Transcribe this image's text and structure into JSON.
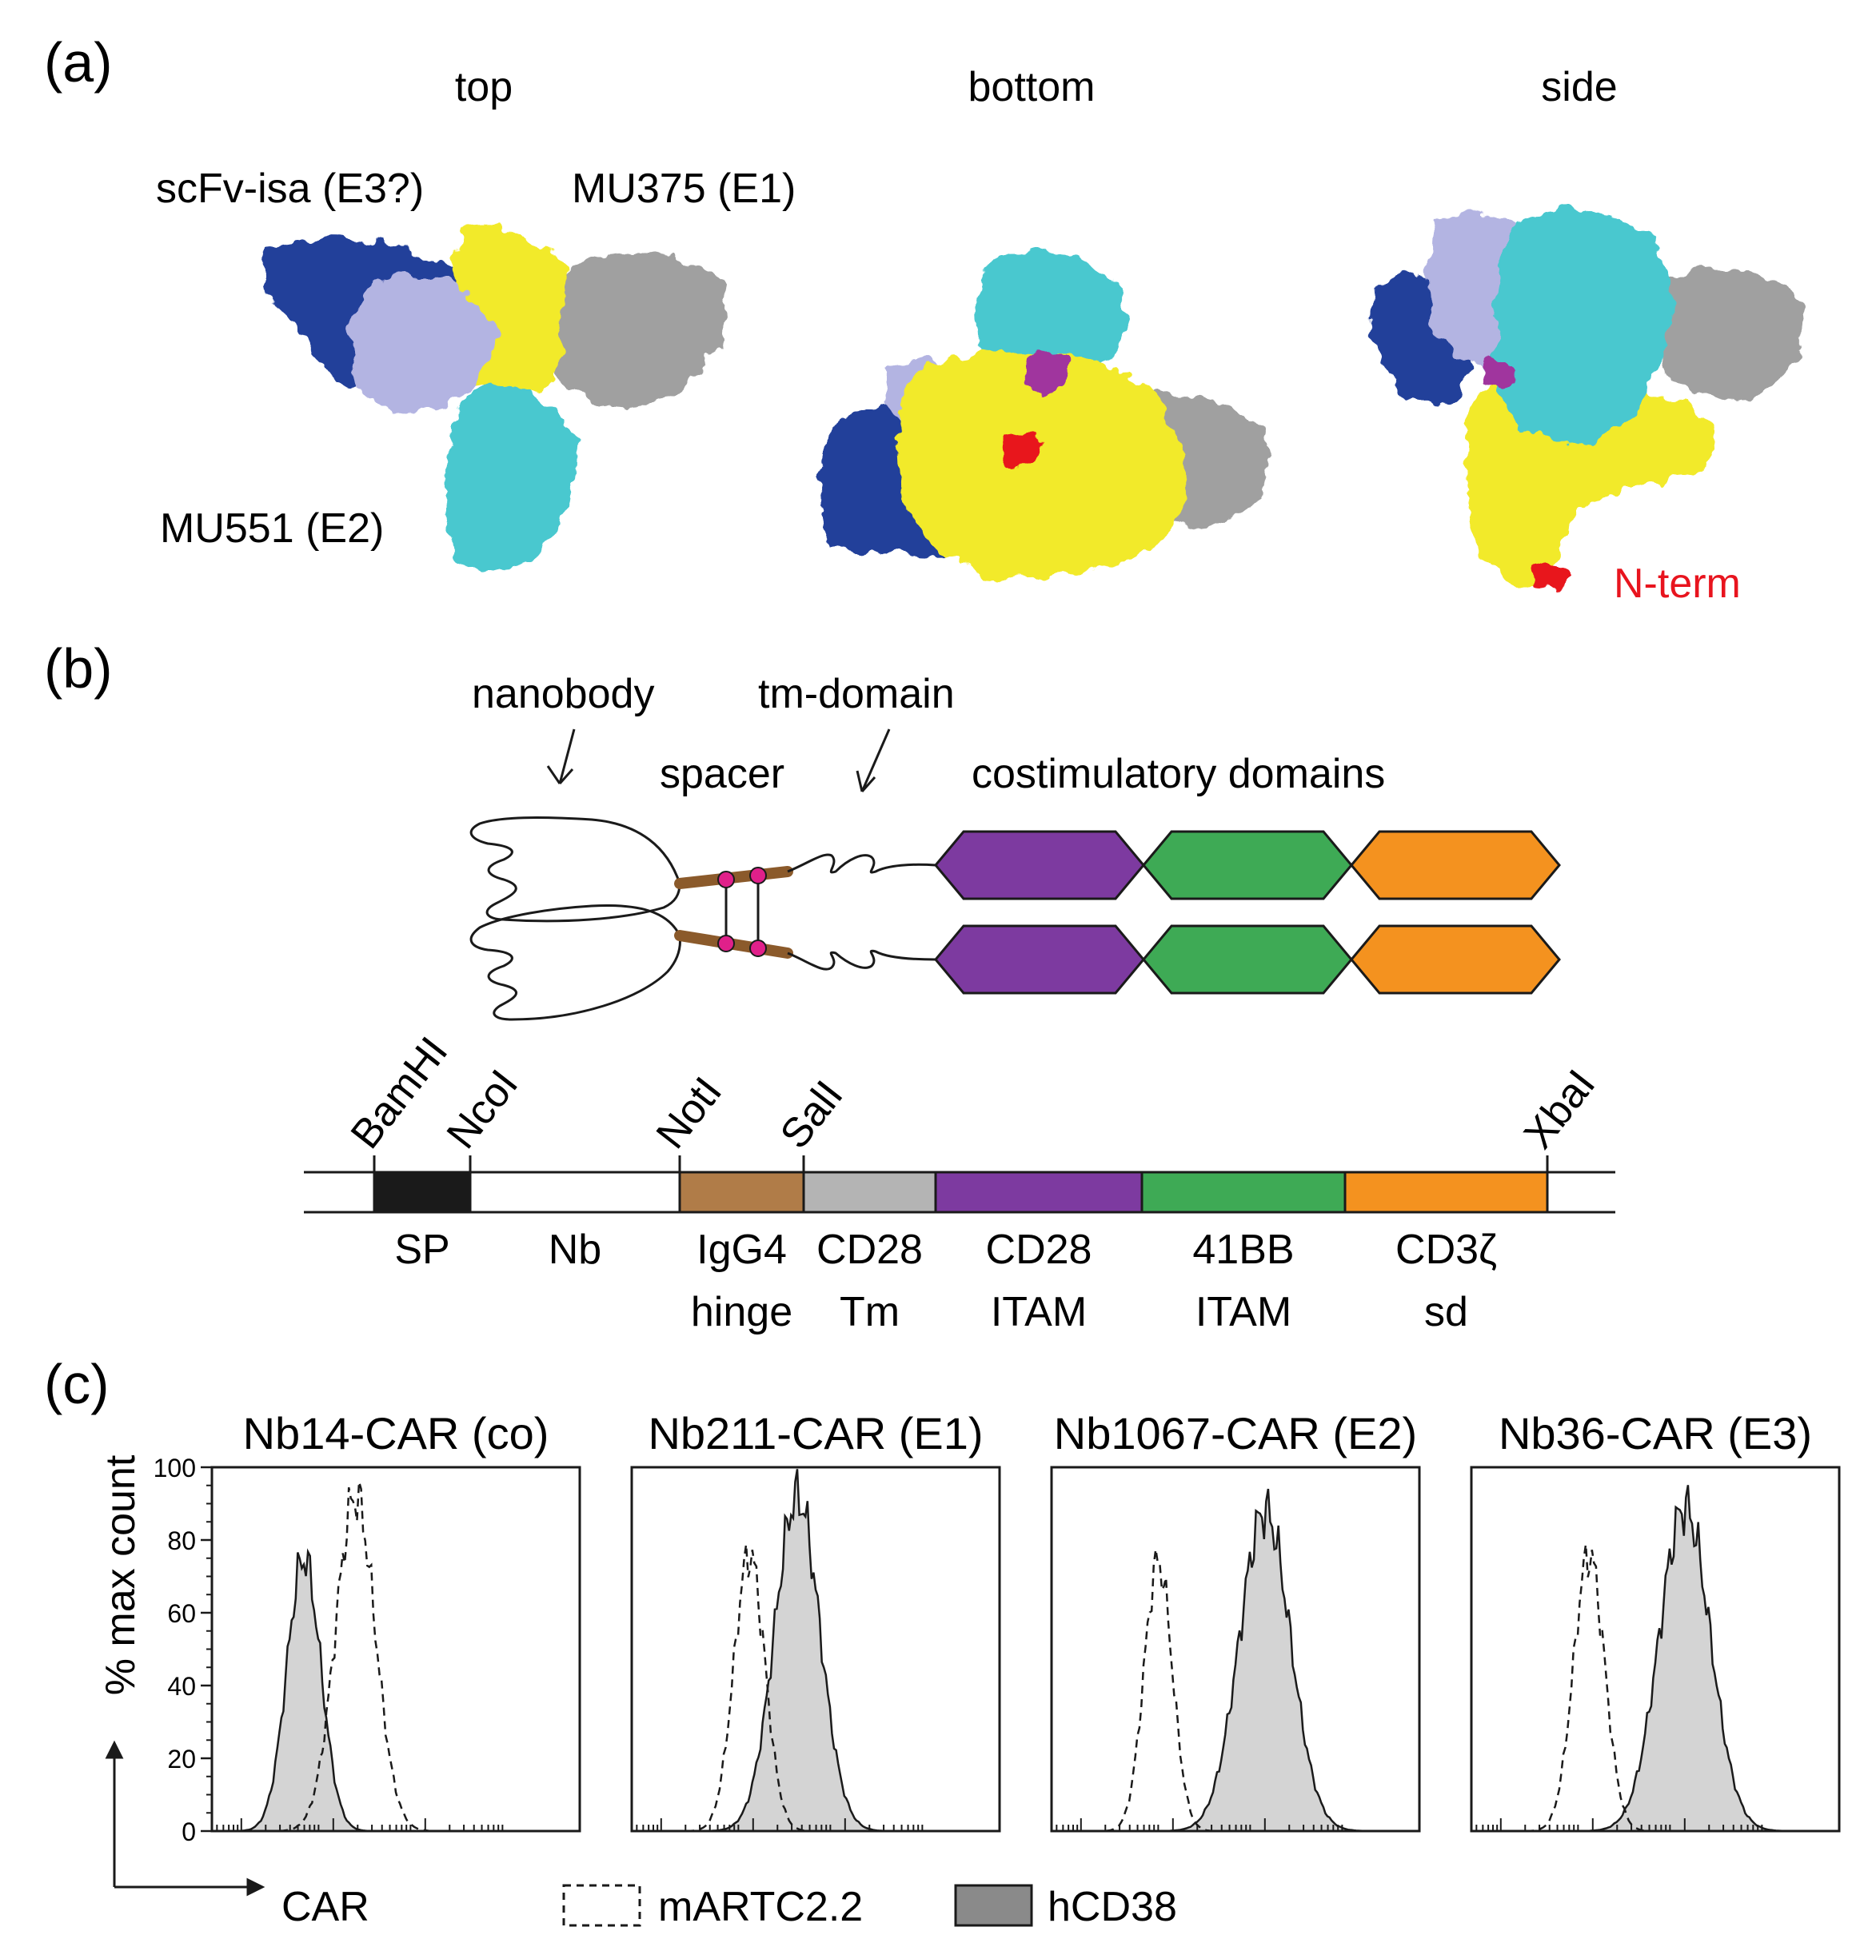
{
  "panel_a": {
    "label": "(a)",
    "views": [
      "top",
      "bottom",
      "side"
    ],
    "epitopes": [
      "scFv-isa (E3?)",
      "MU375 (E1)",
      "MU551 (E2)"
    ],
    "nterm": "N-term",
    "colors": {
      "navy": "#24409a",
      "lavender": "#b3b4e2",
      "yellow": "#f2ea2b",
      "gray": "#a0a0a0",
      "cyan": "#49c8cf",
      "magenta": "#a0359e",
      "red": "#e8141e"
    }
  },
  "panel_b": {
    "label": "(b)",
    "labels": {
      "nanobody": "nanobody",
      "tm_domain": "tm-domain",
      "spacer": "spacer",
      "costim": "costimulatory domains"
    },
    "sites": [
      "BamHI",
      "NcoI",
      "NotI",
      "SalI",
      "XbaI"
    ],
    "segments": [
      {
        "top": "SP",
        "bottom": "",
        "color": "#1a1a1a"
      },
      {
        "top": "Nb",
        "bottom": "",
        "color": "#ffffff"
      },
      {
        "top": "IgG4",
        "bottom": "hinge",
        "color": "#b07c48"
      },
      {
        "top": "CD28",
        "bottom": "Tm",
        "color": "#b4b4b4"
      },
      {
        "top": "CD28",
        "bottom": "ITAM",
        "color": "#7d3aa0"
      },
      {
        "top": "41BB",
        "bottom": "ITAM",
        "color": "#3eaa55"
      },
      {
        "top": "CD3ζ",
        "bottom": "sd",
        "color": "#f4921f"
      }
    ],
    "domain_colors": [
      "#7d3aa0",
      "#3eaa55",
      "#f4921f"
    ]
  },
  "panel_c": {
    "label": "(c)",
    "ylabel": "% max count",
    "xlabel": "CAR",
    "legend": [
      "mARTC2.2",
      "hCD38"
    ]
  },
  "chart_data": [
    {
      "type": "area",
      "title": "Nb14-CAR (co)",
      "ylabel": "% max count",
      "xlabel": "CAR",
      "ylim": [
        0,
        100
      ],
      "yticks": [
        0,
        20,
        40,
        60,
        80,
        100
      ],
      "series": [
        {
          "name": "mARTC2.2",
          "peak_x": 0.39,
          "width": 0.07,
          "peak_y": 92
        },
        {
          "name": "hCD38",
          "peak_x": 0.25,
          "width": 0.06,
          "peak_y": 75
        }
      ]
    },
    {
      "type": "area",
      "title": "Nb211-CAR (E1)",
      "ylabel": "% max count",
      "xlabel": "CAR",
      "ylim": [
        0,
        100
      ],
      "series": [
        {
          "name": "mARTC2.2",
          "peak_x": 0.32,
          "width": 0.055,
          "peak_y": 76
        },
        {
          "name": "hCD38",
          "peak_x": 0.45,
          "width": 0.08,
          "peak_y": 92
        }
      ]
    },
    {
      "type": "area",
      "title": "Nb1067-CAR (E2)",
      "ylabel": "% max count",
      "xlabel": "CAR",
      "ylim": [
        0,
        100
      ],
      "series": [
        {
          "name": "mARTC2.2",
          "peak_x": 0.29,
          "width": 0.05,
          "peak_y": 74
        },
        {
          "name": "hCD38",
          "peak_x": 0.58,
          "width": 0.09,
          "peak_y": 88
        }
      ]
    },
    {
      "type": "area",
      "title": "Nb36-CAR (E3)",
      "ylabel": "% max count",
      "xlabel": "CAR",
      "ylim": [
        0,
        100
      ],
      "series": [
        {
          "name": "mARTC2.2",
          "peak_x": 0.32,
          "width": 0.055,
          "peak_y": 76
        },
        {
          "name": "hCD38",
          "peak_x": 0.58,
          "width": 0.09,
          "peak_y": 89
        }
      ]
    }
  ]
}
